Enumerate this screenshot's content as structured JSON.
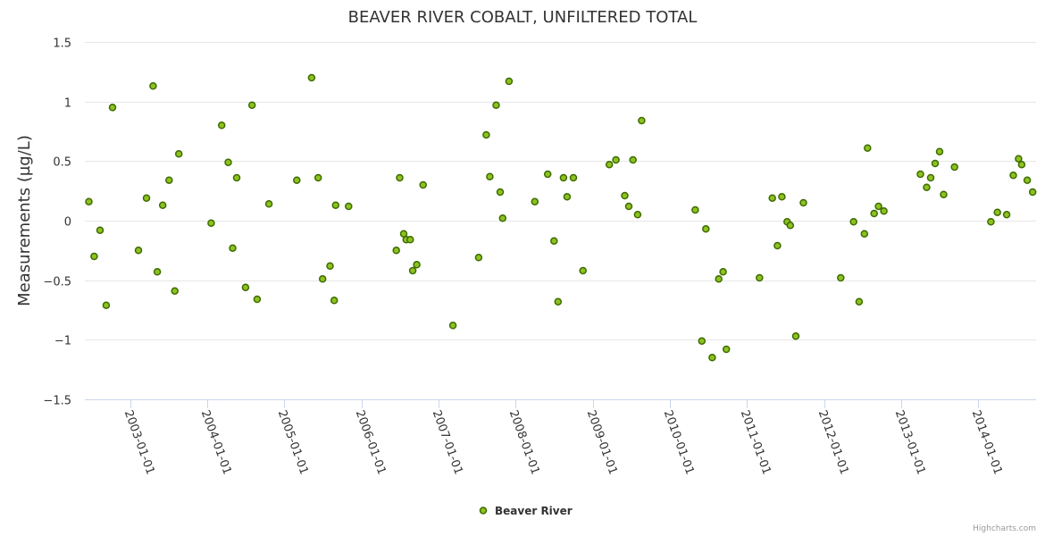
{
  "chart_data": {
    "type": "scatter",
    "title": "BEAVER RIVER COBALT, UNFILTERED TOTAL",
    "xlabel": "",
    "ylabel": "Measurements (µg/L)",
    "ylim": [
      -1.5,
      1.5
    ],
    "xlim": [
      "2002-06-01",
      "2014-10-01"
    ],
    "y_ticks": [
      {
        "value": 1.5,
        "label": "1.5"
      },
      {
        "value": 1,
        "label": "1"
      },
      {
        "value": 0.5,
        "label": "0.5"
      },
      {
        "value": 0,
        "label": "0"
      },
      {
        "value": -0.5,
        "label": "−0.5"
      },
      {
        "value": -1,
        "label": "−1"
      },
      {
        "value": -1.5,
        "label": "−1.5"
      }
    ],
    "x_ticks": [
      "2003-01-01",
      "2004-01-01",
      "2005-01-01",
      "2006-01-01",
      "2007-01-01",
      "2008-01-01",
      "2009-01-01",
      "2010-01-01",
      "2011-01-01",
      "2012-01-01",
      "2013-01-01",
      "2014-01-01"
    ],
    "legend": "bottom-center",
    "grid": true,
    "series": [
      {
        "name": "Beaver River",
        "color": "#7cb5ec",
        "fill": "#8dc21f",
        "stroke": "#3d6b00",
        "x": [
          "2002-06-20",
          "2002-07-15",
          "2002-08-12",
          "2002-09-10",
          "2002-10-10",
          "2003-02-10",
          "2003-03-20",
          "2003-04-20",
          "2003-05-10",
          "2003-06-05",
          "2003-07-05",
          "2003-08-01",
          "2003-08-20",
          "2004-01-20",
          "2004-03-10",
          "2004-04-10",
          "2004-05-01",
          "2004-05-20",
          "2004-07-01",
          "2004-08-01",
          "2004-08-25",
          "2004-10-20",
          "2005-03-01",
          "2005-05-10",
          "2005-06-10",
          "2005-07-01",
          "2005-08-05",
          "2005-08-25",
          "2005-09-01",
          "2005-11-01",
          "2006-06-15",
          "2006-07-01",
          "2006-07-20",
          "2006-08-01",
          "2006-08-20",
          "2006-09-01",
          "2006-09-20",
          "2006-10-20",
          "2007-03-10",
          "2007-07-10",
          "2007-08-15",
          "2007-09-01",
          "2007-10-01",
          "2007-10-20",
          "2007-11-01",
          "2007-12-01",
          "2008-04-01",
          "2008-06-01",
          "2008-07-01",
          "2008-07-20",
          "2008-08-15",
          "2008-09-01",
          "2008-10-01",
          "2008-11-15",
          "2009-03-20",
          "2009-04-20",
          "2009-06-01",
          "2009-06-20",
          "2009-07-10",
          "2009-08-01",
          "2009-08-20",
          "2010-05-01",
          "2010-06-01",
          "2010-06-20",
          "2010-07-20",
          "2010-08-20",
          "2010-09-10",
          "2010-09-25",
          "2011-03-01",
          "2011-05-01",
          "2011-05-25",
          "2011-06-15",
          "2011-07-10",
          "2011-07-25",
          "2011-08-20",
          "2011-09-25",
          "2012-03-20",
          "2012-05-20",
          "2012-06-15",
          "2012-07-10",
          "2012-07-25",
          "2012-08-25",
          "2012-09-15",
          "2012-10-10",
          "2013-04-01",
          "2013-05-01",
          "2013-05-20",
          "2013-06-10",
          "2013-07-01",
          "2013-07-20",
          "2013-09-10",
          "2014-03-01",
          "2014-04-01",
          "2014-05-15",
          "2014-06-15",
          "2014-07-10",
          "2014-07-25",
          "2014-08-20",
          "2014-09-15"
        ],
        "values": [
          0.16,
          -0.3,
          -0.08,
          -0.71,
          0.95,
          -0.25,
          0.19,
          1.13,
          -0.43,
          0.13,
          0.34,
          -0.59,
          0.56,
          -0.02,
          0.8,
          0.49,
          -0.23,
          0.36,
          -0.56,
          0.97,
          -0.66,
          0.14,
          0.34,
          1.2,
          0.36,
          -0.49,
          -0.38,
          -0.67,
          0.13,
          0.12,
          -0.25,
          0.36,
          -0.11,
          -0.16,
          -0.16,
          -0.42,
          -0.37,
          0.3,
          -0.88,
          -0.31,
          0.72,
          0.37,
          0.97,
          0.24,
          0.02,
          1.17,
          0.16,
          0.39,
          -0.17,
          -0.68,
          0.36,
          0.2,
          0.36,
          -0.42,
          0.47,
          0.51,
          0.21,
          0.12,
          0.51,
          0.05,
          0.84,
          0.09,
          -1.01,
          -0.07,
          -1.15,
          -0.49,
          -0.43,
          -1.08,
          -0.48,
          0.19,
          -0.21,
          0.2,
          -0.01,
          -0.04,
          -0.97,
          0.15,
          -0.48,
          -0.01,
          -0.68,
          -0.11,
          0.61,
          0.06,
          0.12,
          0.08,
          0.39,
          0.28,
          0.36,
          0.48,
          0.58,
          0.22,
          0.45,
          -0.01,
          0.07,
          0.05,
          0.38,
          0.52,
          0.47,
          0.34,
          0.24
        ]
      }
    ]
  },
  "credits": "Highcharts.com"
}
